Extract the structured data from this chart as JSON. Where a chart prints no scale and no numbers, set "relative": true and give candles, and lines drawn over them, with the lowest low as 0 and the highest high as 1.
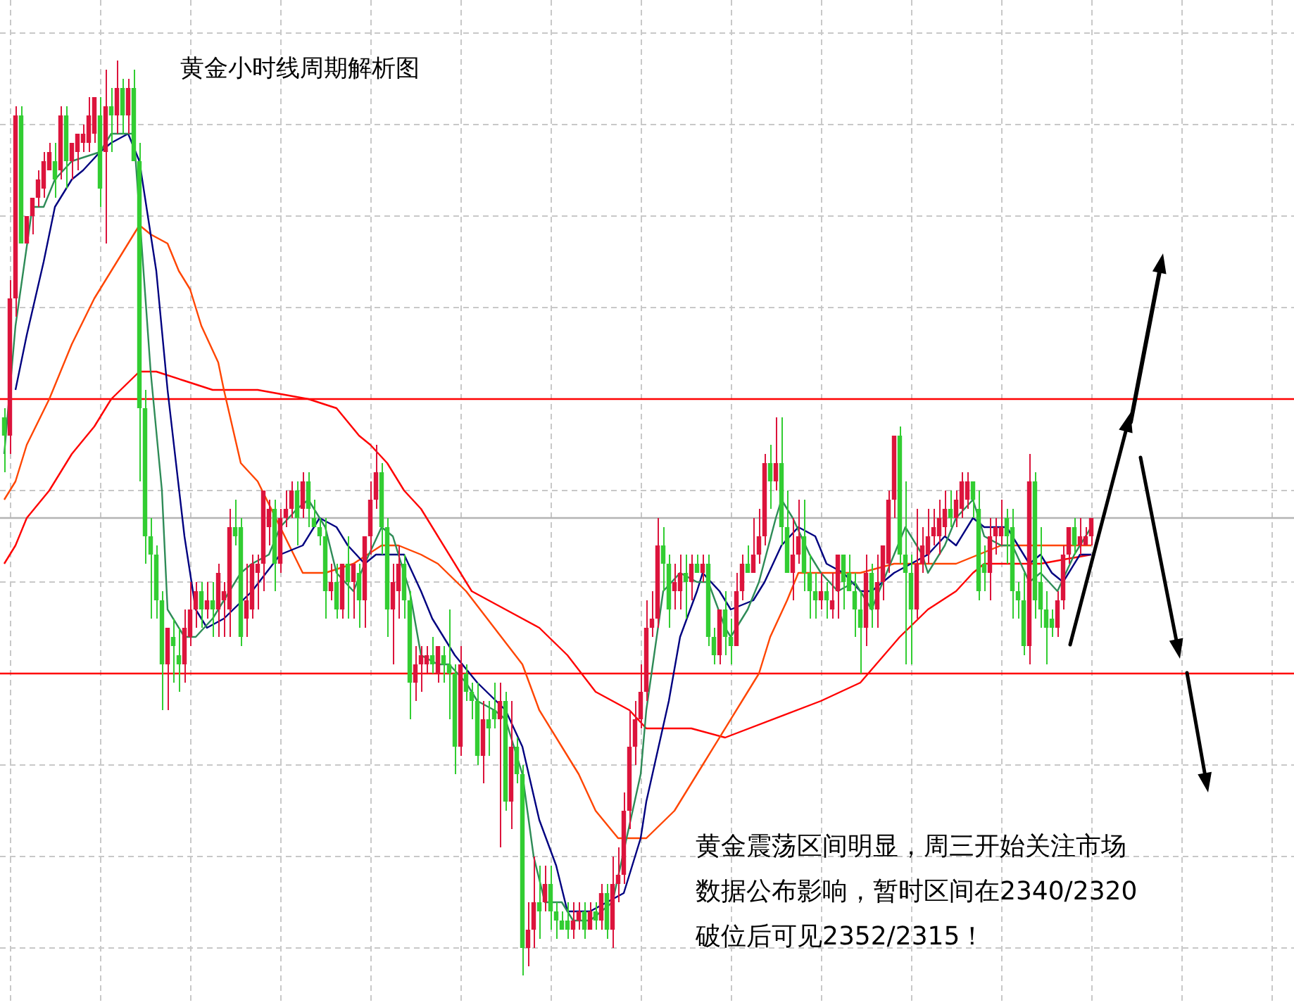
{
  "chart_data": {
    "type": "candlestick",
    "title": "黄金小时线周期解析图",
    "relative": true,
    "grid": true,
    "marker": "none",
    "annotations": [
      "黄金震荡区间明显，周三开始关注市场",
      "数据公布影响，暂时区间在2340/2320",
      "破位后可见2352/2315！"
    ],
    "categories": [
      null,
      null,
      null,
      null,
      null,
      null,
      null,
      null,
      null,
      null,
      null,
      null,
      null,
      null,
      null,
      null,
      null,
      null,
      null,
      null,
      null,
      null,
      null,
      null,
      null,
      null,
      null,
      null,
      null,
      null,
      null,
      null,
      null,
      null,
      null,
      null,
      null,
      null,
      null,
      null,
      null,
      null,
      null,
      null,
      null,
      null,
      null,
      null,
      null,
      null,
      null,
      null,
      null,
      null,
      null,
      null,
      null,
      null,
      null,
      null,
      null,
      null,
      null,
      null,
      null,
      null,
      null,
      null,
      null,
      null,
      null,
      null,
      null,
      null,
      null,
      null,
      null,
      null,
      null,
      null,
      null,
      null,
      null,
      null,
      null,
      null,
      null,
      null,
      null,
      null,
      null,
      null,
      null,
      null,
      null,
      null,
      null,
      null,
      null,
      null,
      null,
      null,
      null,
      null,
      null,
      null,
      null,
      null,
      null,
      null,
      null,
      null,
      null,
      null,
      null,
      null,
      null,
      null,
      null,
      null,
      null,
      null,
      null,
      null,
      null,
      null,
      null,
      null,
      null,
      null,
      null,
      null,
      null,
      null,
      null,
      null,
      null,
      null,
      null,
      null,
      null,
      null,
      null,
      null,
      null,
      null,
      null,
      null,
      null,
      null,
      null,
      null,
      null,
      null,
      null,
      null,
      null,
      null,
      null,
      null,
      null,
      null,
      null,
      null,
      null,
      null,
      null,
      null,
      null,
      null,
      null,
      null,
      null,
      null,
      null,
      null,
      null,
      null,
      null,
      null,
      null,
      null,
      null,
      null,
      null,
      null,
      null,
      null,
      null,
      null,
      null,
      null,
      null,
      null
    ],
    "ohlc": [
      [
        0.61,
        0.62,
        0.55,
        0.59
      ],
      [
        0.59,
        0.76,
        0.57,
        0.74
      ],
      [
        0.74,
        0.95,
        0.72,
        0.94
      ],
      [
        0.94,
        0.95,
        0.8,
        0.8
      ],
      [
        0.8,
        0.83,
        0.8,
        0.83
      ],
      [
        0.83,
        0.85,
        0.81,
        0.85
      ],
      [
        0.85,
        0.88,
        0.84,
        0.87
      ],
      [
        0.86,
        0.9,
        0.85,
        0.89
      ],
      [
        0.88,
        0.91,
        0.88,
        0.9
      ],
      [
        0.89,
        0.91,
        0.85,
        0.87
      ],
      [
        0.88,
        0.95,
        0.87,
        0.94
      ],
      [
        0.94,
        0.95,
        0.86,
        0.89
      ],
      [
        0.89,
        0.91,
        0.87,
        0.91
      ],
      [
        0.9,
        0.92,
        0.88,
        0.92
      ],
      [
        0.91,
        0.93,
        0.9,
        0.92
      ],
      [
        0.91,
        0.96,
        0.9,
        0.94
      ],
      [
        0.92,
        0.96,
        0.91,
        0.96
      ],
      [
        0.94,
        0.96,
        0.84,
        0.86
      ],
      [
        0.9,
        0.99,
        0.8,
        0.95
      ],
      [
        0.95,
        0.97,
        0.9,
        0.94
      ],
      [
        0.94,
        1.0,
        0.92,
        0.97
      ],
      [
        0.97,
        0.98,
        0.92,
        0.94
      ],
      [
        0.94,
        0.98,
        0.92,
        0.97
      ],
      [
        0.97,
        0.99,
        0.89,
        0.89
      ],
      [
        0.89,
        0.91,
        0.54,
        0.62
      ],
      [
        0.62,
        0.64,
        0.45,
        0.48
      ],
      [
        0.48,
        0.5,
        0.39,
        0.46
      ],
      [
        0.46,
        0.47,
        0.39,
        0.41
      ],
      [
        0.41,
        0.42,
        0.29,
        0.34
      ],
      [
        0.34,
        0.38,
        0.29,
        0.38
      ],
      [
        0.37,
        0.39,
        0.32,
        0.36
      ],
      [
        0.35,
        0.38,
        0.31,
        0.34
      ],
      [
        0.34,
        0.4,
        0.32,
        0.38
      ],
      [
        0.37,
        0.43,
        0.36,
        0.4
      ],
      [
        0.4,
        0.43,
        0.38,
        0.42
      ],
      [
        0.42,
        0.43,
        0.38,
        0.4
      ],
      [
        0.4,
        0.43,
        0.39,
        0.41
      ],
      [
        0.41,
        0.43,
        0.37,
        0.4
      ],
      [
        0.4,
        0.45,
        0.37,
        0.44
      ],
      [
        0.41,
        0.43,
        0.37,
        0.42
      ],
      [
        0.4,
        0.51,
        0.37,
        0.49
      ],
      [
        0.49,
        0.52,
        0.47,
        0.48
      ],
      [
        0.49,
        0.5,
        0.36,
        0.37
      ],
      [
        0.39,
        0.45,
        0.37,
        0.41
      ],
      [
        0.4,
        0.46,
        0.39,
        0.45
      ],
      [
        0.44,
        0.46,
        0.4,
        0.45
      ],
      [
        0.45,
        0.53,
        0.42,
        0.53
      ],
      [
        0.49,
        0.52,
        0.47,
        0.51
      ],
      [
        0.51,
        0.52,
        0.42,
        0.45
      ],
      [
        0.45,
        0.51,
        0.44,
        0.5
      ],
      [
        0.5,
        0.53,
        0.49,
        0.51
      ],
      [
        0.51,
        0.54,
        0.5,
        0.53
      ],
      [
        0.53,
        0.54,
        0.47,
        0.5
      ],
      [
        0.51,
        0.55,
        0.5,
        0.54
      ],
      [
        0.54,
        0.55,
        0.49,
        0.51
      ],
      [
        0.5,
        0.52,
        0.49,
        0.49
      ],
      [
        0.49,
        0.5,
        0.47,
        0.48
      ],
      [
        0.48,
        0.5,
        0.39,
        0.42
      ],
      [
        0.42,
        0.45,
        0.41,
        0.43
      ],
      [
        0.43,
        0.45,
        0.39,
        0.4
      ],
      [
        0.4,
        0.45,
        0.39,
        0.45
      ],
      [
        0.45,
        0.48,
        0.39,
        0.43
      ],
      [
        0.43,
        0.45,
        0.39,
        0.45
      ],
      [
        0.44,
        0.45,
        0.38,
        0.41
      ],
      [
        0.41,
        0.48,
        0.38,
        0.48
      ],
      [
        0.48,
        0.54,
        0.46,
        0.52
      ],
      [
        0.52,
        0.58,
        0.51,
        0.55
      ],
      [
        0.55,
        0.56,
        0.46,
        0.49
      ],
      [
        0.49,
        0.5,
        0.37,
        0.4
      ],
      [
        0.4,
        0.45,
        0.34,
        0.43
      ],
      [
        0.42,
        0.47,
        0.39,
        0.45
      ],
      [
        0.45,
        0.46,
        0.39,
        0.41
      ],
      [
        0.41,
        0.42,
        0.28,
        0.32
      ],
      [
        0.32,
        0.36,
        0.3,
        0.34
      ],
      [
        0.34,
        0.36,
        0.31,
        0.35
      ],
      [
        0.34,
        0.36,
        0.33,
        0.35
      ],
      [
        0.35,
        0.37,
        0.33,
        0.34
      ],
      [
        0.33,
        0.36,
        0.32,
        0.36
      ],
      [
        0.35,
        0.36,
        0.32,
        0.34
      ],
      [
        0.34,
        0.4,
        0.28,
        0.33
      ],
      [
        0.33,
        0.34,
        0.22,
        0.25
      ],
      [
        0.25,
        0.36,
        0.24,
        0.34
      ],
      [
        0.33,
        0.34,
        0.3,
        0.31
      ],
      [
        0.31,
        0.32,
        0.28,
        0.3
      ],
      [
        0.3,
        0.32,
        0.23,
        0.24
      ],
      [
        0.24,
        0.3,
        0.21,
        0.28
      ],
      [
        0.28,
        0.3,
        0.24,
        0.27
      ],
      [
        0.29,
        0.32,
        0.27,
        0.28
      ],
      [
        0.28,
        0.32,
        0.14,
        0.3
      ],
      [
        0.3,
        0.31,
        0.18,
        0.19
      ],
      [
        0.19,
        0.3,
        0.16,
        0.25
      ],
      [
        0.25,
        0.26,
        0.21,
        0.22
      ],
      [
        0.22,
        0.23,
        0.0,
        0.03
      ],
      [
        0.03,
        0.08,
        0.01,
        0.05
      ],
      [
        0.05,
        0.13,
        0.03,
        0.08
      ],
      [
        0.08,
        0.12,
        0.04,
        0.07
      ],
      [
        0.08,
        0.12,
        0.07,
        0.1
      ],
      [
        0.1,
        0.12,
        0.05,
        0.07
      ],
      [
        0.07,
        0.08,
        0.04,
        0.06
      ],
      [
        0.06,
        0.07,
        0.05,
        0.05
      ],
      [
        0.06,
        0.08,
        0.04,
        0.05
      ],
      [
        0.05,
        0.08,
        0.04,
        0.06
      ],
      [
        0.06,
        0.08,
        0.05,
        0.07
      ],
      [
        0.07,
        0.08,
        0.04,
        0.05
      ],
      [
        0.05,
        0.08,
        0.05,
        0.07
      ],
      [
        0.07,
        0.08,
        0.05,
        0.06
      ],
      [
        0.06,
        0.1,
        0.05,
        0.09
      ],
      [
        0.09,
        0.1,
        0.04,
        0.05
      ],
      [
        0.05,
        0.13,
        0.03,
        0.1
      ],
      [
        0.1,
        0.14,
        0.08,
        0.11
      ],
      [
        0.11,
        0.2,
        0.1,
        0.18
      ],
      [
        0.18,
        0.29,
        0.16,
        0.25
      ],
      [
        0.25,
        0.3,
        0.23,
        0.28
      ],
      [
        0.28,
        0.34,
        0.27,
        0.31
      ],
      [
        0.31,
        0.41,
        0.3,
        0.38
      ],
      [
        0.38,
        0.42,
        0.37,
        0.39
      ],
      [
        0.39,
        0.5,
        0.38,
        0.47
      ],
      [
        0.47,
        0.49,
        0.42,
        0.45
      ],
      [
        0.45,
        0.46,
        0.38,
        0.4
      ],
      [
        0.42,
        0.45,
        0.4,
        0.43
      ],
      [
        0.42,
        0.46,
        0.4,
        0.44
      ],
      [
        0.44,
        0.46,
        0.39,
        0.43
      ],
      [
        0.43,
        0.46,
        0.41,
        0.45
      ],
      [
        0.45,
        0.46,
        0.44,
        0.44
      ],
      [
        0.44,
        0.46,
        0.43,
        0.45
      ],
      [
        0.45,
        0.46,
        0.36,
        0.37
      ],
      [
        0.37,
        0.38,
        0.34,
        0.35
      ],
      [
        0.35,
        0.4,
        0.34,
        0.4
      ],
      [
        0.4,
        0.42,
        0.35,
        0.37
      ],
      [
        0.37,
        0.39,
        0.34,
        0.36
      ],
      [
        0.36,
        0.44,
        0.36,
        0.42
      ],
      [
        0.42,
        0.46,
        0.41,
        0.45
      ],
      [
        0.45,
        0.47,
        0.44,
        0.44
      ],
      [
        0.44,
        0.5,
        0.44,
        0.46
      ],
      [
        0.46,
        0.51,
        0.45,
        0.48
      ],
      [
        0.48,
        0.57,
        0.47,
        0.56
      ],
      [
        0.56,
        0.58,
        0.51,
        0.54
      ],
      [
        0.54,
        0.61,
        0.53,
        0.56
      ],
      [
        0.56,
        0.61,
        0.47,
        0.49
      ],
      [
        0.49,
        0.53,
        0.44,
        0.44
      ],
      [
        0.44,
        0.5,
        0.41,
        0.46
      ],
      [
        0.46,
        0.52,
        0.45,
        0.48
      ],
      [
        0.48,
        0.52,
        0.42,
        0.44
      ],
      [
        0.44,
        0.46,
        0.39,
        0.42
      ],
      [
        0.42,
        0.44,
        0.39,
        0.41
      ],
      [
        0.41,
        0.44,
        0.4,
        0.42
      ],
      [
        0.42,
        0.43,
        0.39,
        0.41
      ],
      [
        0.4,
        0.44,
        0.39,
        0.41
      ],
      [
        0.42,
        0.46,
        0.39,
        0.46
      ],
      [
        0.46,
        0.46,
        0.4,
        0.43
      ],
      [
        0.44,
        0.46,
        0.42,
        0.42
      ],
      [
        0.42,
        0.44,
        0.37,
        0.4
      ],
      [
        0.4,
        0.42,
        0.33,
        0.38
      ],
      [
        0.38,
        0.46,
        0.36,
        0.44
      ],
      [
        0.44,
        0.45,
        0.38,
        0.4
      ],
      [
        0.4,
        0.46,
        0.38,
        0.43
      ],
      [
        0.43,
        0.47,
        0.41,
        0.47
      ],
      [
        0.45,
        0.53,
        0.44,
        0.52
      ],
      [
        0.52,
        0.59,
        0.5,
        0.59
      ],
      [
        0.59,
        0.6,
        0.45,
        0.46
      ],
      [
        0.46,
        0.54,
        0.34,
        0.44
      ],
      [
        0.44,
        0.46,
        0.34,
        0.4
      ],
      [
        0.4,
        0.51,
        0.39,
        0.45
      ],
      [
        0.45,
        0.49,
        0.44,
        0.47
      ],
      [
        0.46,
        0.51,
        0.45,
        0.48
      ],
      [
        0.48,
        0.51,
        0.47,
        0.49
      ],
      [
        0.48,
        0.52,
        0.46,
        0.5
      ],
      [
        0.49,
        0.53,
        0.48,
        0.51
      ],
      [
        0.51,
        0.53,
        0.49,
        0.5
      ],
      [
        0.5,
        0.53,
        0.49,
        0.52
      ],
      [
        0.51,
        0.55,
        0.5,
        0.54
      ],
      [
        0.52,
        0.55,
        0.51,
        0.54
      ],
      [
        0.54,
        0.54,
        0.5,
        0.52
      ],
      [
        0.51,
        0.53,
        0.41,
        0.42
      ],
      [
        0.45,
        0.47,
        0.42,
        0.44
      ],
      [
        0.44,
        0.5,
        0.41,
        0.48
      ],
      [
        0.48,
        0.5,
        0.46,
        0.49
      ],
      [
        0.48,
        0.52,
        0.47,
        0.49
      ],
      [
        0.5,
        0.51,
        0.45,
        0.48
      ],
      [
        0.49,
        0.51,
        0.39,
        0.42
      ],
      [
        0.42,
        0.43,
        0.39,
        0.41
      ],
      [
        0.41,
        0.44,
        0.35,
        0.36
      ],
      [
        0.36,
        0.57,
        0.34,
        0.54
      ],
      [
        0.54,
        0.55,
        0.39,
        0.41
      ],
      [
        0.43,
        0.49,
        0.38,
        0.4
      ],
      [
        0.4,
        0.42,
        0.34,
        0.38
      ],
      [
        0.39,
        0.4,
        0.37,
        0.38
      ],
      [
        0.38,
        0.42,
        0.37,
        0.41
      ],
      [
        0.41,
        0.47,
        0.4,
        0.46
      ],
      [
        0.46,
        0.49,
        0.45,
        0.49
      ],
      [
        0.49,
        0.5,
        0.46,
        0.47
      ],
      [
        0.47,
        0.5,
        0.46,
        0.48
      ],
      [
        0.47,
        0.49,
        0.47,
        0.48
      ],
      [
        0.48,
        0.5,
        0.47,
        0.5
      ]
    ],
    "colors": [
      "#32cd32",
      "#dc143c",
      "#dc143c",
      "#32cd32",
      "#dc143c",
      "#dc143c",
      "#dc143c",
      "#dc143c",
      "#dc143c",
      "#32cd32",
      "#dc143c",
      "#32cd32",
      "#dc143c",
      "#dc143c",
      "#dc143c",
      "#dc143c",
      "#dc143c",
      "#32cd32",
      "#dc143c",
      "#32cd32",
      "#dc143c",
      "#32cd32",
      "#dc143c",
      "#32cd32",
      "#32cd32",
      "#32cd32",
      "#32cd32",
      "#32cd32",
      "#32cd32",
      "#dc143c",
      "#32cd32",
      "#32cd32",
      "#dc143c",
      "#dc143c",
      "#dc143c",
      "#32cd32",
      "#dc143c",
      "#32cd32",
      "#dc143c",
      "#dc143c",
      "#dc143c",
      "#32cd32",
      "#32cd32",
      "#dc143c",
      "#dc143c",
      "#dc143c",
      "#dc143c",
      "#dc143c",
      "#32cd32",
      "#dc143c",
      "#dc143c",
      "#dc143c",
      "#32cd32",
      "#dc143c",
      "#32cd32",
      "#32cd32",
      "#32cd32",
      "#32cd32",
      "#dc143c",
      "#32cd32",
      "#dc143c",
      "#32cd32",
      "#dc143c",
      "#32cd32",
      "#dc143c",
      "#dc143c",
      "#dc143c",
      "#32cd32",
      "#32cd32",
      "#dc143c",
      "#dc143c",
      "#32cd32",
      "#32cd32",
      "#dc143c",
      "#dc143c",
      "#dc143c",
      "#32cd32",
      "#dc143c",
      "#32cd32",
      "#32cd32",
      "#32cd32",
      "#dc143c",
      "#32cd32",
      "#32cd32",
      "#32cd32",
      "#dc143c",
      "#32cd32",
      "#32cd32",
      "#dc143c",
      "#32cd32",
      "#dc143c",
      "#32cd32",
      "#32cd32",
      "#dc143c",
      "#dc143c",
      "#32cd32",
      "#dc143c",
      "#32cd32",
      "#32cd32",
      "#32cd32",
      "#32cd32",
      "#dc143c",
      "#dc143c",
      "#32cd32",
      "#dc143c",
      "#32cd32",
      "#dc143c",
      "#32cd32",
      "#dc143c",
      "#dc143c",
      "#dc143c",
      "#dc143c",
      "#dc143c",
      "#dc143c",
      "#dc143c",
      "#dc143c",
      "#dc143c",
      "#32cd32",
      "#32cd32",
      "#dc143c",
      "#dc143c",
      "#32cd32",
      "#dc143c",
      "#32cd32",
      "#dc143c",
      "#32cd32",
      "#32cd32",
      "#dc143c",
      "#32cd32",
      "#32cd32",
      "#dc143c",
      "#dc143c",
      "#32cd32",
      "#dc143c",
      "#dc143c",
      "#dc143c",
      "#32cd32",
      "#dc143c",
      "#32cd32",
      "#32cd32",
      "#dc143c",
      "#dc143c",
      "#32cd32",
      "#32cd32",
      "#32cd32",
      "#dc143c",
      "#32cd32",
      "#dc143c",
      "#dc143c",
      "#32cd32",
      "#32cd32",
      "#32cd32",
      "#32cd32",
      "#dc143c",
      "#32cd32",
      "#dc143c",
      "#dc143c",
      "#dc143c",
      "#dc143c",
      "#32cd32",
      "#32cd32",
      "#32cd32",
      "#dc143c",
      "#dc143c",
      "#dc143c",
      "#dc143c",
      "#dc143c",
      "#dc143c",
      "#32cd32",
      "#dc143c",
      "#dc143c",
      "#dc143c",
      "#32cd32",
      "#32cd32",
      "#32cd32",
      "#dc143c",
      "#dc143c",
      "#dc143c",
      "#32cd32",
      "#32cd32",
      "#32cd32",
      "#32cd32",
      "#dc143c",
      "#32cd32",
      "#32cd32",
      "#32cd32",
      "#32cd32",
      "#dc143c",
      "#dc143c",
      "#dc143c",
      "#32cd32",
      "#dc143c",
      "#dc143c",
      "#dc143c"
    ],
    "series": [
      {
        "type": "line",
        "color": "#2e8b57",
        "values": [
          0.57,
          null,
          0.71,
          null,
          null,
          0.84,
          null,
          0.84,
          null,
          0.87,
          null,
          null,
          0.89,
          null,
          null,
          null,
          null,
          0.9,
          null,
          0.92,
          null,
          null,
          null,
          0.92,
          null,
          null,
          0.66,
          null,
          0.53,
          0.4,
          null,
          null,
          0.37,
          null,
          0.37,
          null,
          null,
          0.39,
          null,
          0.41,
          null,
          null,
          0.44,
          null,
          0.45,
          null,
          null,
          0.46,
          null,
          0.49,
          null,
          null,
          0.51,
          null,
          0.52,
          null,
          null,
          0.49,
          null,
          0.44,
          null,
          null,
          0.42,
          null,
          0.45,
          null,
          null,
          0.49,
          null,
          0.48,
          null,
          null,
          0.42,
          null,
          0.35,
          null,
          null,
          0.34,
          null,
          0.34,
          null,
          null,
          0.32,
          null,
          0.3,
          null,
          null,
          0.29,
          null,
          0.28,
          null,
          null,
          0.22,
          null,
          0.13,
          null,
          0.08,
          null,
          null,
          0.08,
          null,
          0.06,
          null,
          null,
          0.06,
          null,
          null,
          null,
          0.08,
          null,
          null,
          null,
          null,
          0.22,
          0.29,
          null,
          null,
          0.42,
          null,
          null,
          0.44,
          null,
          null,
          0.43,
          null,
          0.43,
          null,
          null,
          0.38,
          0.37,
          null,
          null,
          0.4,
          null,
          0.43,
          null,
          null,
          0.5,
          0.52,
          null,
          0.5,
          null,
          null,
          0.46,
          null,
          0.44,
          null,
          null,
          0.42,
          null,
          null,
          0.43,
          null,
          null,
          0.4,
          null,
          null,
          null,
          0.46,
          null,
          0.49,
          null,
          null,
          0.46,
          0.44,
          null,
          null,
          0.47,
          null,
          0.5,
          null,
          null,
          0.52,
          null,
          0.48,
          null,
          null,
          0.47,
          null,
          0.47,
          null,
          null,
          0.43,
          null,
          0.44,
          null,
          null,
          0.42,
          null,
          null,
          0.46,
          null,
          null,
          0.49
        ]
      },
      {
        "type": "line",
        "color": "#000080",
        "values": [
          null,
          null,
          0.64,
          null,
          0.7,
          null,
          null,
          0.78,
          null,
          0.84,
          null,
          null,
          0.87,
          null,
          0.88,
          null,
          null,
          0.9,
          null,
          0.91,
          null,
          null,
          0.92,
          null,
          0.89,
          null,
          null,
          0.77,
          null,
          0.64,
          null,
          null,
          0.48,
          null,
          0.4,
          null,
          0.38,
          null,
          null,
          0.39,
          null,
          null,
          null,
          null,
          0.42,
          null,
          null,
          null,
          null,
          0.46,
          null,
          null,
          null,
          0.47,
          null,
          null,
          0.5,
          null,
          null,
          0.49,
          null,
          0.47,
          null,
          null,
          0.45,
          null,
          0.46,
          null,
          null,
          0.46,
          null,
          0.46,
          null,
          null,
          0.42,
          null,
          0.39,
          null,
          null,
          null,
          0.35,
          null,
          null,
          null,
          0.32,
          null,
          null,
          null,
          null,
          0.29,
          null,
          null,
          0.25,
          null,
          null,
          0.17,
          null,
          null,
          0.12,
          null,
          0.07,
          null,
          null,
          null,
          0.07,
          null,
          null,
          null,
          null,
          null,
          0.09,
          null,
          null,
          0.15,
          0.19,
          null,
          null,
          null,
          0.3,
          null,
          0.37,
          null,
          null,
          0.42,
          0.44,
          null,
          null,
          0.42,
          null,
          0.4,
          null,
          null,
          null,
          0.41,
          null,
          0.43,
          null,
          null,
          0.47,
          null,
          null,
          0.49,
          null,
          null,
          0.48,
          null,
          0.45,
          null,
          null,
          0.44,
          null,
          null,
          0.42,
          null,
          0.42,
          null,
          null,
          null,
          0.44,
          null,
          null,
          0.45,
          null,
          null,
          0.46,
          null,
          null,
          0.48,
          null,
          0.47,
          null,
          null,
          0.5,
          null,
          0.49,
          null,
          null,
          null,
          0.49,
          null,
          0.47,
          null,
          0.45,
          null,
          0.46,
          null,
          0.44,
          null,
          0.43,
          null,
          null,
          0.46,
          null,
          0.46
        ]
      },
      {
        "type": "line",
        "color": "#ff4500",
        "values": [
          0.52,
          null,
          0.54,
          null,
          0.58,
          null,
          null,
          null,
          0.63,
          null,
          null,
          null,
          0.69,
          null,
          null,
          null,
          0.74,
          null,
          null,
          0.77,
          null,
          null,
          0.8,
          null,
          0.82,
          null,
          0.81,
          null,
          null,
          0.8,
          null,
          0.77,
          null,
          0.75,
          null,
          0.71,
          null,
          null,
          0.67,
          0.64,
          null,
          null,
          0.56,
          null,
          null,
          0.54,
          null,
          null,
          null,
          0.49,
          null,
          null,
          null,
          0.44,
          null,
          null,
          null,
          0.44,
          null,
          null,
          null,
          null,
          0.45,
          null,
          null,
          null,
          null,
          0.47,
          null,
          null,
          0.47,
          null,
          null,
          null,
          0.46,
          null,
          null,
          0.45,
          null,
          null,
          null,
          null,
          0.42,
          null,
          null,
          null,
          null,
          0.38,
          null,
          null,
          null,
          null,
          0.34,
          null,
          null,
          0.29,
          null,
          null,
          null,
          0.25,
          null,
          null,
          0.22,
          null,
          null,
          0.18,
          null,
          null,
          null,
          0.15,
          null,
          null,
          null,
          0.15,
          0.15,
          null,
          null,
          null,
          null,
          0.18,
          null,
          null,
          null,
          null,
          0.23,
          null,
          null,
          null,
          null,
          null,
          null,
          0.3,
          null,
          null,
          0.33,
          null,
          0.37,
          null,
          null,
          0.41,
          null,
          0.44,
          null,
          null,
          0.44,
          null,
          null,
          null,
          null,
          null,
          null,
          null,
          0.44,
          null,
          null,
          null,
          null,
          null,
          0.45,
          null,
          null,
          null,
          null,
          0.45,
          null,
          null,
          null,
          null,
          null,
          0.45,
          null,
          null,
          null,
          0.46,
          null,
          null,
          null,
          0.47,
          null,
          null,
          null,
          null,
          null,
          null,
          0.47,
          null,
          null,
          null,
          null,
          0.47,
          null,
          null,
          null,
          0.47
        ]
      },
      {
        "type": "line",
        "color": "#ff0000",
        "values": [
          0.45,
          null,
          0.47,
          null,
          0.5,
          null,
          null,
          null,
          0.53,
          null,
          null,
          null,
          0.57,
          null,
          null,
          null,
          0.6,
          null,
          null,
          0.63,
          null,
          null,
          null,
          null,
          0.66,
          null,
          null,
          0.66,
          null,
          null,
          null,
          null,
          0.65,
          null,
          null,
          null,
          null,
          0.64,
          null,
          null,
          null,
          null,
          null,
          null,
          null,
          0.64,
          null,
          null,
          null,
          null,
          null,
          null,
          null,
          null,
          0.63,
          null,
          null,
          null,
          null,
          0.62,
          null,
          null,
          null,
          0.59,
          null,
          0.58,
          null,
          null,
          0.56,
          null,
          null,
          0.53,
          null,
          null,
          0.51,
          null,
          null,
          0.48,
          null,
          null,
          null,
          null,
          null,
          0.42,
          null,
          null,
          null,
          null,
          null,
          0.4,
          null,
          null,
          null,
          null,
          null,
          0.38,
          null,
          null,
          null,
          null,
          0.35,
          null,
          null,
          null,
          null,
          0.31,
          null,
          null,
          null,
          null,
          null,
          0.29,
          null,
          null,
          0.27,
          null,
          null,
          null,
          null,
          null,
          null,
          null,
          0.27,
          null,
          null,
          null,
          null,
          null,
          0.26,
          null,
          null,
          null,
          null,
          null,
          null,
          null,
          null,
          null,
          null,
          null,
          null,
          null,
          null,
          null,
          null,
          0.3,
          null,
          null,
          null,
          null,
          null,
          null,
          0.32,
          null,
          null,
          null,
          null,
          null,
          null,
          0.37,
          null,
          null,
          null,
          null,
          0.4,
          null,
          null,
          null,
          null,
          0.42,
          null,
          null,
          0.44,
          null,
          0.45,
          null,
          null,
          null,
          null,
          null,
          null,
          null,
          null,
          null,
          0.45,
          null,
          null,
          null,
          null,
          null,
          null,
          null,
          null,
          0.46
        ]
      }
    ],
    "ref_lines": [
      {
        "axis": "y",
        "value": 0.63,
        "color": "#ff0000"
      },
      {
        "axis": "y",
        "value": 0.5,
        "color": "#b4b4b4"
      },
      {
        "axis": "y",
        "value": 0.33,
        "color": "#ff0000"
      }
    ]
  }
}
